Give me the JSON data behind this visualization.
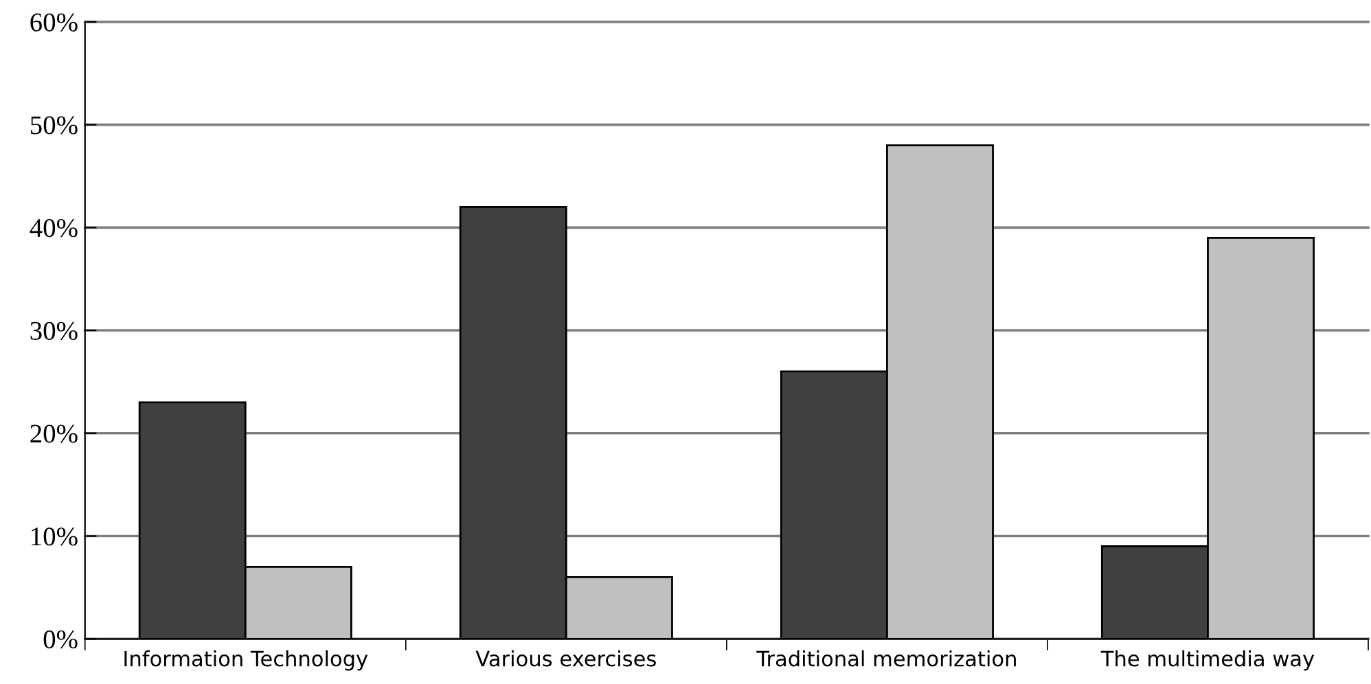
{
  "chart_data": {
    "type": "bar",
    "categories": [
      "Information Technology",
      "Various exercises",
      "Traditional memorization",
      "The multimedia way"
    ],
    "series": [
      {
        "color": "#404040",
        "values": [
          23,
          42,
          26,
          9
        ]
      },
      {
        "color": "#c0c0c0",
        "values": [
          7,
          6,
          48,
          39
        ]
      }
    ],
    "ylim": [
      0,
      60
    ],
    "yticks": [
      {
        "value": 0,
        "label": "0%"
      },
      {
        "value": 10,
        "label": "10%"
      },
      {
        "value": 20,
        "label": "20%"
      },
      {
        "value": 30,
        "label": "30%"
      },
      {
        "value": 40,
        "label": "40%"
      },
      {
        "value": 50,
        "label": "50%"
      },
      {
        "value": 60,
        "label": "60%"
      }
    ],
    "grid": "y",
    "legend": false
  }
}
